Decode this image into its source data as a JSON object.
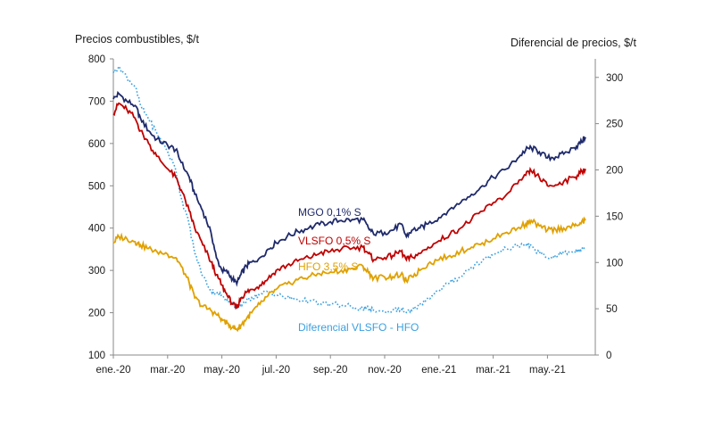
{
  "chart_data": {
    "type": "line",
    "y_left_label": "Precios combustibles, $/t",
    "y_right_label": "Diferencial de precios, $/t",
    "ylim_left": [
      100,
      800
    ],
    "ylim_right": [
      0,
      320
    ],
    "y_left_ticks": [
      "100",
      "200",
      "300",
      "400",
      "500",
      "600",
      "700",
      "800"
    ],
    "y_right_ticks": [
      "0",
      "50",
      "100",
      "150",
      "200",
      "250",
      "300"
    ],
    "x_ticks": [
      "ene.-20",
      "mar.-20",
      "may.-20",
      "jul.-20",
      "sep.-20",
      "nov.-20",
      "ene.-21",
      "mar.-21",
      "may.-21"
    ],
    "x_range_months": [
      0,
      17.4
    ],
    "grid": false,
    "series": [
      {
        "name": "MGO 0,1% S",
        "axis": "left",
        "color": "#1f2a6b",
        "style": "solid",
        "points": [
          [
            0,
            705
          ],
          [
            0.2,
            718
          ],
          [
            0.5,
            700
          ],
          [
            0.8,
            690
          ],
          [
            1.0,
            660
          ],
          [
            1.3,
            630
          ],
          [
            1.6,
            610
          ],
          [
            2.0,
            596
          ],
          [
            2.3,
            585
          ],
          [
            2.5,
            555
          ],
          [
            2.8,
            520
          ],
          [
            3.0,
            480
          ],
          [
            3.3,
            440
          ],
          [
            3.6,
            390
          ],
          [
            3.8,
            330
          ],
          [
            4.0,
            300
          ],
          [
            4.2,
            295
          ],
          [
            4.4,
            280
          ],
          [
            4.55,
            268
          ],
          [
            4.7,
            290
          ],
          [
            4.9,
            310
          ],
          [
            5.1,
            320
          ],
          [
            5.4,
            330
          ],
          [
            5.7,
            350
          ],
          [
            6.0,
            365
          ],
          [
            6.4,
            380
          ],
          [
            6.8,
            392
          ],
          [
            7.2,
            400
          ],
          [
            7.6,
            408
          ],
          [
            8.0,
            415
          ],
          [
            8.4,
            418
          ],
          [
            8.8,
            420
          ],
          [
            9.2,
            420
          ],
          [
            9.4,
            400
          ],
          [
            9.6,
            385
          ],
          [
            10.0,
            390
          ],
          [
            10.3,
            395
          ],
          [
            10.6,
            410
          ],
          [
            10.8,
            380
          ],
          [
            11.0,
            395
          ],
          [
            11.3,
            400
          ],
          [
            11.6,
            410
          ],
          [
            12.0,
            425
          ],
          [
            12.4,
            445
          ],
          [
            12.8,
            460
          ],
          [
            13.2,
            480
          ],
          [
            13.6,
            500
          ],
          [
            14.0,
            520
          ],
          [
            14.5,
            540
          ],
          [
            14.9,
            565
          ],
          [
            15.2,
            585
          ],
          [
            15.4,
            590
          ],
          [
            15.7,
            580
          ],
          [
            16.0,
            566
          ],
          [
            16.3,
            568
          ],
          [
            16.6,
            575
          ],
          [
            17.0,
            590
          ],
          [
            17.2,
            600
          ],
          [
            17.4,
            615
          ]
        ]
      },
      {
        "name": "VLSFO 0,5% S",
        "axis": "left",
        "color": "#c00000",
        "style": "solid",
        "points": [
          [
            0,
            670
          ],
          [
            0.2,
            695
          ],
          [
            0.5,
            680
          ],
          [
            0.8,
            660
          ],
          [
            1.0,
            630
          ],
          [
            1.3,
            600
          ],
          [
            1.6,
            570
          ],
          [
            2.0,
            540
          ],
          [
            2.3,
            520
          ],
          [
            2.5,
            490
          ],
          [
            2.8,
            440
          ],
          [
            3.0,
            400
          ],
          [
            3.3,
            360
          ],
          [
            3.6,
            320
          ],
          [
            3.8,
            290
          ],
          [
            4.0,
            265
          ],
          [
            4.2,
            240
          ],
          [
            4.4,
            220
          ],
          [
            4.55,
            210
          ],
          [
            4.7,
            235
          ],
          [
            4.9,
            248
          ],
          [
            5.1,
            255
          ],
          [
            5.4,
            265
          ],
          [
            5.7,
            280
          ],
          [
            6.0,
            300
          ],
          [
            6.4,
            312
          ],
          [
            6.8,
            322
          ],
          [
            7.2,
            330
          ],
          [
            7.6,
            340
          ],
          [
            8.0,
            345
          ],
          [
            8.4,
            350
          ],
          [
            8.8,
            352
          ],
          [
            9.2,
            355
          ],
          [
            9.4,
            340
          ],
          [
            9.6,
            325
          ],
          [
            10.0,
            330
          ],
          [
            10.3,
            335
          ],
          [
            10.6,
            345
          ],
          [
            10.8,
            325
          ],
          [
            11.0,
            332
          ],
          [
            11.3,
            340
          ],
          [
            11.6,
            355
          ],
          [
            12.0,
            370
          ],
          [
            12.4,
            385
          ],
          [
            12.8,
            400
          ],
          [
            13.2,
            420
          ],
          [
            13.6,
            440
          ],
          [
            14.0,
            460
          ],
          [
            14.5,
            480
          ],
          [
            14.9,
            505
          ],
          [
            15.2,
            525
          ],
          [
            15.4,
            535
          ],
          [
            15.7,
            520
          ],
          [
            16.0,
            500
          ],
          [
            16.3,
            502
          ],
          [
            16.6,
            510
          ],
          [
            17.0,
            520
          ],
          [
            17.2,
            530
          ],
          [
            17.4,
            540
          ]
        ]
      },
      {
        "name": "HFO 3,5% S",
        "axis": "left",
        "color": "#e0a100",
        "style": "solid",
        "points": [
          [
            0,
            365
          ],
          [
            0.2,
            380
          ],
          [
            0.5,
            375
          ],
          [
            0.8,
            368
          ],
          [
            1.0,
            360
          ],
          [
            1.3,
            352
          ],
          [
            1.6,
            345
          ],
          [
            2.0,
            338
          ],
          [
            2.3,
            330
          ],
          [
            2.5,
            310
          ],
          [
            2.8,
            270
          ],
          [
            3.0,
            235
          ],
          [
            3.3,
            215
          ],
          [
            3.6,
            205
          ],
          [
            3.8,
            195
          ],
          [
            4.0,
            185
          ],
          [
            4.2,
            175
          ],
          [
            4.4,
            165
          ],
          [
            4.55,
            160
          ],
          [
            4.7,
            170
          ],
          [
            4.9,
            185
          ],
          [
            5.1,
            200
          ],
          [
            5.4,
            220
          ],
          [
            5.7,
            240
          ],
          [
            6.0,
            255
          ],
          [
            6.4,
            268
          ],
          [
            6.8,
            278
          ],
          [
            7.2,
            285
          ],
          [
            7.6,
            292
          ],
          [
            8.0,
            296
          ],
          [
            8.4,
            300
          ],
          [
            8.8,
            305
          ],
          [
            9.2,
            310
          ],
          [
            9.4,
            295
          ],
          [
            9.6,
            282
          ],
          [
            10.0,
            284
          ],
          [
            10.3,
            285
          ],
          [
            10.6,
            290
          ],
          [
            10.8,
            275
          ],
          [
            11.0,
            285
          ],
          [
            11.3,
            300
          ],
          [
            11.6,
            315
          ],
          [
            12.0,
            325
          ],
          [
            12.4,
            335
          ],
          [
            12.8,
            345
          ],
          [
            13.2,
            355
          ],
          [
            13.6,
            365
          ],
          [
            14.0,
            375
          ],
          [
            14.5,
            390
          ],
          [
            14.9,
            400
          ],
          [
            15.2,
            410
          ],
          [
            15.4,
            418
          ],
          [
            15.7,
            405
          ],
          [
            16.0,
            395
          ],
          [
            16.3,
            397
          ],
          [
            16.6,
            400
          ],
          [
            17.0,
            405
          ],
          [
            17.2,
            412
          ],
          [
            17.4,
            418
          ]
        ]
      },
      {
        "name": "Diferencial VLSFO - HFO",
        "axis": "right",
        "color": "#3aa0e0",
        "style": "dotted",
        "points": [
          [
            0,
            305
          ],
          [
            0.2,
            312
          ],
          [
            0.5,
            300
          ],
          [
            0.8,
            290
          ],
          [
            1.0,
            270
          ],
          [
            1.3,
            255
          ],
          [
            1.6,
            240
          ],
          [
            2.0,
            220
          ],
          [
            2.3,
            200
          ],
          [
            2.5,
            170
          ],
          [
            2.8,
            140
          ],
          [
            3.0,
            110
          ],
          [
            3.3,
            85
          ],
          [
            3.6,
            70
          ],
          [
            3.8,
            66
          ],
          [
            4.0,
            65
          ],
          [
            4.2,
            60
          ],
          [
            4.4,
            55
          ],
          [
            4.55,
            50
          ],
          [
            4.7,
            55
          ],
          [
            4.9,
            58
          ],
          [
            5.1,
            62
          ],
          [
            5.4,
            65
          ],
          [
            5.7,
            68
          ],
          [
            6.0,
            65
          ],
          [
            6.4,
            62
          ],
          [
            6.8,
            60
          ],
          [
            7.2,
            58
          ],
          [
            7.6,
            56
          ],
          [
            8.0,
            55
          ],
          [
            8.4,
            54
          ],
          [
            8.8,
            52
          ],
          [
            9.2,
            50
          ],
          [
            9.4,
            50
          ],
          [
            9.6,
            48
          ],
          [
            10.0,
            46
          ],
          [
            10.3,
            48
          ],
          [
            10.6,
            50
          ],
          [
            10.8,
            46
          ],
          [
            11.0,
            48
          ],
          [
            11.3,
            55
          ],
          [
            11.6,
            62
          ],
          [
            12.0,
            70
          ],
          [
            12.4,
            78
          ],
          [
            12.8,
            85
          ],
          [
            13.2,
            95
          ],
          [
            13.6,
            102
          ],
          [
            14.0,
            108
          ],
          [
            14.5,
            115
          ],
          [
            14.9,
            118
          ],
          [
            15.2,
            120
          ],
          [
            15.4,
            118
          ],
          [
            15.7,
            110
          ],
          [
            16.0,
            105
          ],
          [
            16.3,
            108
          ],
          [
            16.6,
            110
          ],
          [
            17.0,
            112
          ],
          [
            17.2,
            115
          ],
          [
            17.4,
            117
          ]
        ]
      }
    ]
  }
}
